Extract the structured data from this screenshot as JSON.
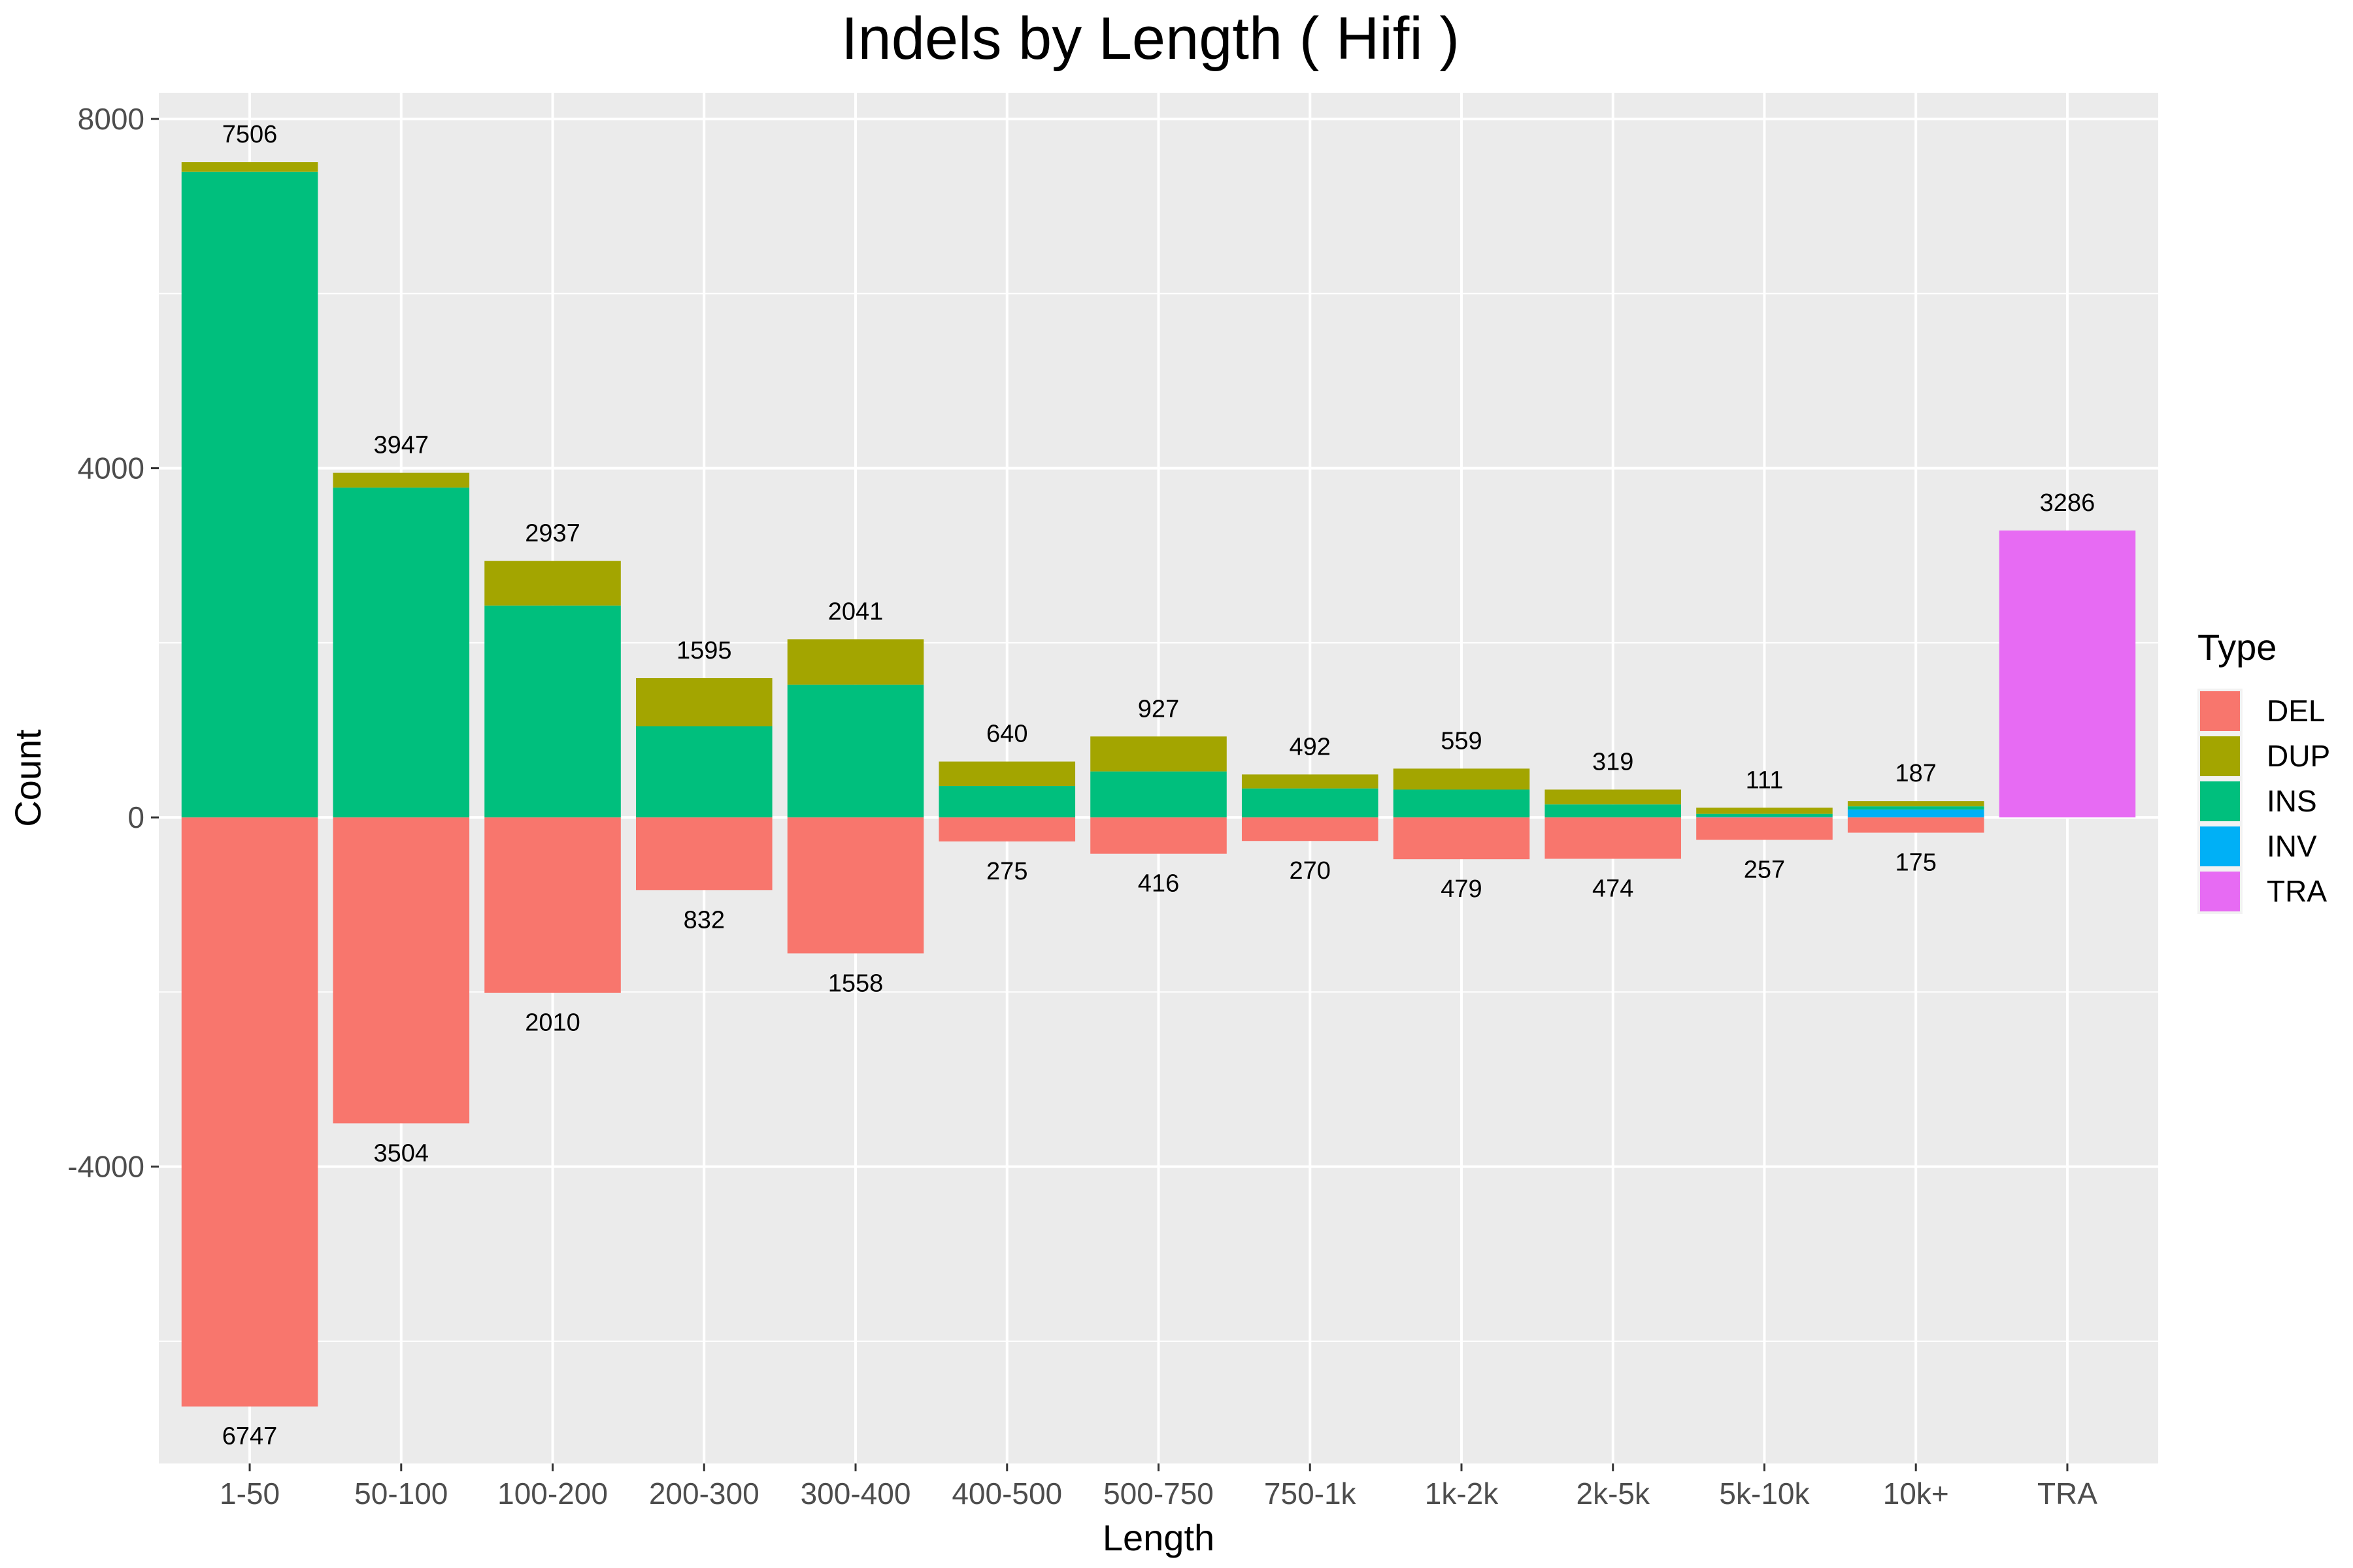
{
  "chart_data": {
    "type": "bar",
    "title": "Indels by Length ( Hifi )",
    "xlabel": "Length",
    "ylabel": "Count",
    "ylim": [
      -7400,
      8300
    ],
    "yticks": [
      8000,
      4000,
      0,
      -4000
    ],
    "ytick_labels": [
      "8000",
      "4000",
      "0",
      "-4000"
    ],
    "grid": true,
    "legend": {
      "title": "Type",
      "position": "right"
    },
    "categories": [
      "1-50",
      "50-100",
      "100-200",
      "200-300",
      "300-400",
      "400-500",
      "500-750",
      "750-1k",
      "1k-2k",
      "2k-5k",
      "5k-10k",
      "10k+",
      "TRA"
    ],
    "series": [
      {
        "name": "DEL",
        "color": "#F8766D",
        "values": [
          -6747,
          -3504,
          -2010,
          -832,
          -1558,
          -275,
          -416,
          -270,
          -479,
          -474,
          -257,
          -175,
          0
        ]
      },
      {
        "name": "DUP",
        "color": "#A3A500",
        "values": [
          110,
          170,
          510,
          550,
          520,
          280,
          400,
          160,
          240,
          170,
          70,
          60,
          0
        ]
      },
      {
        "name": "INS",
        "color": "#00BF7D",
        "values": [
          7396,
          3777,
          2427,
          1045,
          1521,
          360,
          527,
          332,
          319,
          149,
          35,
          37,
          0
        ]
      },
      {
        "name": "INV",
        "color": "#00B0F6",
        "values": [
          0,
          0,
          0,
          0,
          0,
          0,
          0,
          0,
          0,
          0,
          6,
          90,
          0
        ]
      },
      {
        "name": "TRA",
        "color": "#E76BF3",
        "values": [
          0,
          0,
          0,
          0,
          0,
          0,
          0,
          0,
          0,
          0,
          0,
          0,
          3286
        ]
      }
    ],
    "top_labels": [
      "7506",
      "3947",
      "2937",
      "1595",
      "2041",
      "640",
      "927",
      "492",
      "559",
      "319",
      "111",
      "187",
      "3286"
    ],
    "bottom_labels": [
      "6747",
      "3504",
      "2010",
      "832",
      "1558",
      "275",
      "416",
      "270",
      "479",
      "474",
      "257",
      "175",
      ""
    ]
  }
}
